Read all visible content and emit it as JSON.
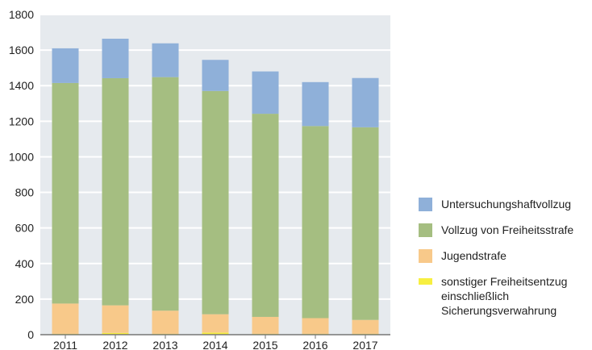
{
  "chart_data": {
    "type": "bar",
    "stacked": true,
    "categories": [
      "2011",
      "2012",
      "2013",
      "2014",
      "2015",
      "2016",
      "2017"
    ],
    "series": [
      {
        "name": "sonstiger Freiheitsentzug einschließlich Sicherungsverwahrung",
        "color": "#f7ef40",
        "values": [
          5,
          10,
          5,
          12,
          5,
          5,
          5
        ]
      },
      {
        "name": "Jugendstrafe",
        "color": "#f8c98a",
        "values": [
          170,
          155,
          130,
          103,
          95,
          88,
          78
        ]
      },
      {
        "name": "Vollzug von Freiheitsstrafe",
        "color": "#a5be81",
        "values": [
          1240,
          1277,
          1313,
          1255,
          1142,
          1080,
          1083
        ]
      },
      {
        "name": "Untersuchungshaftvollzug",
        "color": "#8fb0d9",
        "values": [
          195,
          222,
          190,
          175,
          238,
          247,
          277
        ]
      }
    ],
    "totals_approx": [
      1610,
      1664,
      1638,
      1545,
      1480,
      1420,
      1443
    ],
    "ylim": [
      0,
      1800
    ],
    "yticks": [
      0,
      200,
      400,
      600,
      800,
      1000,
      1200,
      1400,
      1600,
      1800
    ],
    "grid": true,
    "legend_position": "right",
    "title": "",
    "xlabel": "",
    "ylabel": "",
    "plot_background": "#e6eaee",
    "grid_color": "#ffffff"
  },
  "legend": {
    "items": [
      {
        "label": "Untersuchungshaftvollzug",
        "color": "#8fb0d9"
      },
      {
        "label": "Vollzug von Freiheitsstrafe",
        "color": "#a5be81"
      },
      {
        "label": "Jugendstrafe",
        "color": "#f8c98a"
      },
      {
        "label": "sonstiger Freiheitsentzug\neinschließlich\nSicherungsverwahrung",
        "color": "#f7ef40"
      }
    ]
  }
}
